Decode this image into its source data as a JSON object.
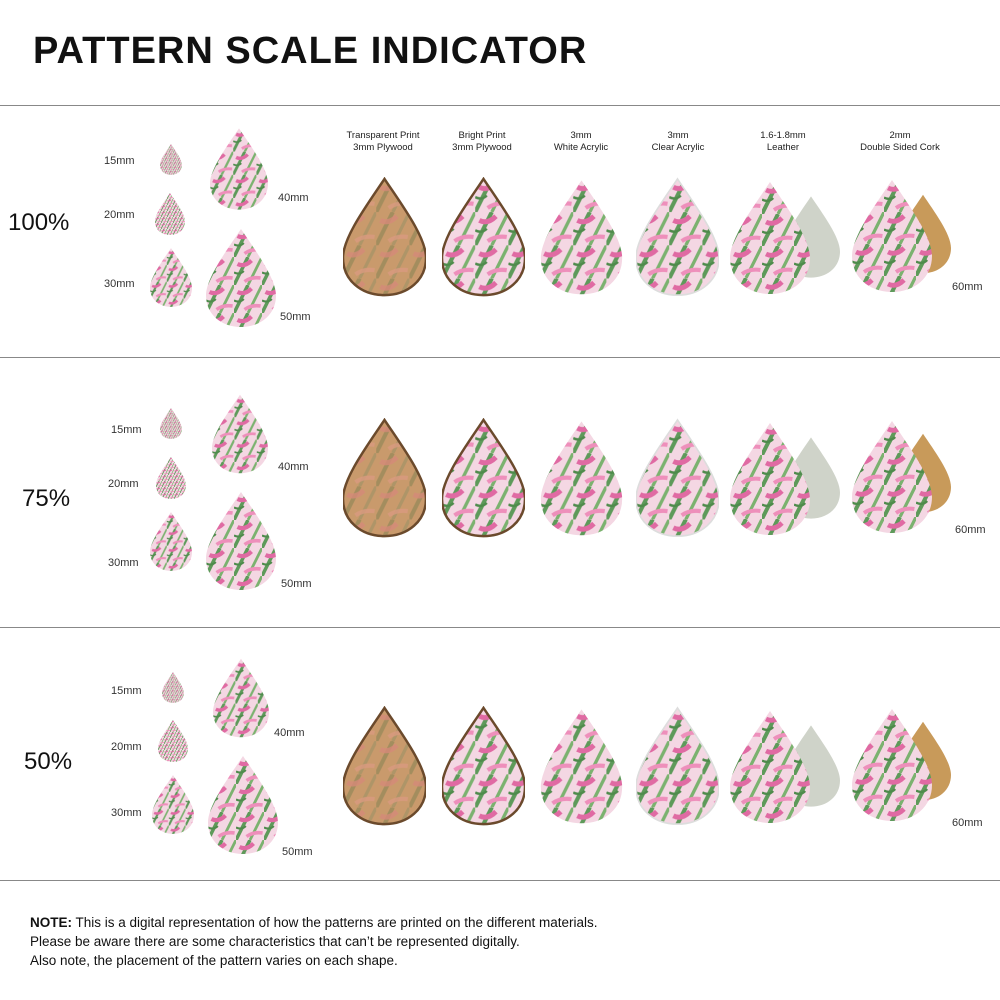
{
  "title": "PATTERN SCALE INDICATOR",
  "materials": [
    {
      "line1": "Transparent Print",
      "line2": "3mm Plywood"
    },
    {
      "line1": "Bright Print",
      "line2": "3mm Plywood"
    },
    {
      "line1": "3mm",
      "line2": "White Acrylic"
    },
    {
      "line1": "3mm",
      "line2": "Clear Acrylic"
    },
    {
      "line1": "1.6-1.8mm",
      "line2": "Leather"
    },
    {
      "line1": "2mm",
      "line2": "Double Sided Cork"
    }
  ],
  "sections": [
    {
      "scale": "100%",
      "sizes": {
        "s15": "15mm",
        "s20": "20mm",
        "s30": "30mm",
        "s40": "40mm",
        "s50": "50mm",
        "s60": "60mm"
      }
    },
    {
      "scale": "75%",
      "sizes": {
        "s15": "15mm",
        "s20": "20mm",
        "s30": "30mm",
        "s40": "40mm",
        "s50": "50mm",
        "s60": "60mm"
      }
    },
    {
      "scale": "50%",
      "sizes": {
        "s15": "15mm",
        "s20": "20mm",
        "s30": "30mm",
        "s40": "40mm",
        "s50": "50mm",
        "s60": "60mm"
      }
    }
  ],
  "note": {
    "bold": "NOTE:",
    "line1": " This is a digital representation of how the patterns are printed on the different materials.",
    "line2": "Please be aware there are some characteristics that can’t be represented digitally.",
    "line3": "Also note, the placement of the pattern varies on each shape."
  },
  "colors": {
    "leaf_green": "#6fa86a",
    "leaf_pink": "#e37fae",
    "plywood": "#b98a5e",
    "leather": "#cfd3c9",
    "cork": "#c89a5a"
  }
}
